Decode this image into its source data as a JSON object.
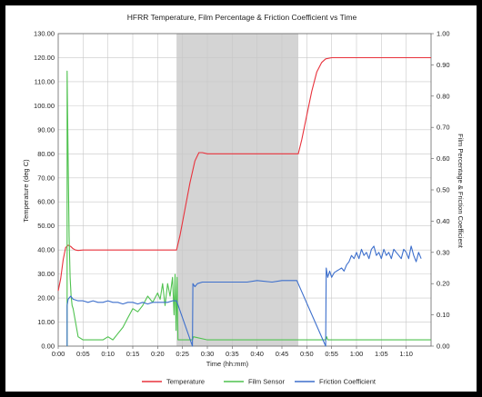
{
  "chart_data": {
    "type": "line",
    "title": "HFRR Temperature, Film Percentage & Friction Coefficient vs Time",
    "xlabel": "Time (hh:mm)",
    "ylabel_left": "Temperature (deg C)",
    "ylabel_right": "Film Percentage & Friction Coefficient",
    "x_ticks": [
      "0:00",
      "0:05",
      "0:10",
      "0:15",
      "0:20",
      "0:25",
      "0:30",
      "0:35",
      "0:40",
      "0:45",
      "0:50",
      "0:55",
      "1:00",
      "1:05",
      "1:10"
    ],
    "xlim": [
      0,
      75
    ],
    "ylim_left": [
      0,
      130
    ],
    "ylim_right": [
      0,
      1
    ],
    "y_ticks_left": [
      "0.00",
      "10.00",
      "20.00",
      "30.00",
      "40.00",
      "50.00",
      "60.00",
      "70.00",
      "80.00",
      "90.00",
      "100.00",
      "110.00",
      "120.00",
      "130.00"
    ],
    "y_ticks_right": [
      "0.00",
      "0.10",
      "0.20",
      "0.30",
      "0.40",
      "0.50",
      "0.60",
      "0.70",
      "0.80",
      "0.90",
      "1.00"
    ],
    "shaded_region": {
      "x_start": 23.8,
      "x_end": 48.3,
      "color": "#d4d4d4"
    },
    "grid": true,
    "legend_position": "bottom",
    "series": [
      {
        "name": "Temperature",
        "axis": "left",
        "color": "#e8323c",
        "x": [
          0,
          0.5,
          1,
          1.5,
          2,
          2.5,
          3,
          3.5,
          4,
          5,
          10,
          15,
          20,
          23.8,
          24.5,
          25.5,
          26.5,
          27.5,
          28.3,
          29,
          30,
          35,
          40,
          45,
          48.3,
          49,
          50,
          51,
          52,
          53,
          53.8,
          55,
          60,
          65,
          70,
          75
        ],
        "y": [
          23,
          28,
          36,
          41,
          42,
          41.5,
          40.5,
          40,
          39.8,
          40,
          40,
          40,
          40,
          40,
          46,
          57,
          68,
          77,
          80.5,
          80.5,
          80,
          80,
          80,
          80,
          80,
          86,
          96,
          106,
          114,
          118,
          119.5,
          120,
          120,
          120,
          120,
          120
        ]
      },
      {
        "name": "Film Sensor",
        "axis": "right",
        "color": "#4fc24f",
        "x": [
          1.8,
          1.8,
          2,
          2.2,
          2.4,
          2.6,
          2.8,
          3,
          4,
          5,
          7,
          9,
          10,
          11,
          12,
          13,
          14,
          15,
          16,
          17,
          18,
          19,
          20,
          20.5,
          21,
          21.5,
          22,
          22.5,
          23,
          23.3,
          23.5,
          23.7,
          23.9,
          24.1,
          27,
          27.2,
          30,
          35,
          40,
          45,
          48,
          53.8,
          54,
          54.2,
          60,
          65,
          70,
          75
        ],
        "y": [
          0,
          0.88,
          0.6,
          0.35,
          0.22,
          0.16,
          0.13,
          0.12,
          0.03,
          0.02,
          0.02,
          0.02,
          0.03,
          0.02,
          0.04,
          0.06,
          0.09,
          0.12,
          0.11,
          0.13,
          0.16,
          0.14,
          0.17,
          0.15,
          0.2,
          0.13,
          0.2,
          0.16,
          0.22,
          0.1,
          0.23,
          0.05,
          0.22,
          0.02,
          0.02,
          0.03,
          0.02,
          0.02,
          0.02,
          0.02,
          0.02,
          0.02,
          0.03,
          0.02,
          0.02,
          0.02,
          0.02,
          0.02
        ]
      },
      {
        "name": "Friction Coefficient",
        "axis": "right",
        "color": "#3d6fcc",
        "x": [
          1.8,
          1.8,
          2,
          2.5,
          3,
          4,
          5,
          6,
          7,
          8,
          9,
          10,
          11,
          12,
          13,
          14,
          15,
          16,
          17,
          18,
          19,
          20,
          21,
          22,
          23,
          23.8,
          27,
          27.1,
          27.5,
          28,
          29,
          30,
          32,
          35,
          38,
          40,
          43,
          45,
          48,
          53.8,
          53.9,
          54.2,
          54.6,
          55,
          55.5,
          56,
          56.5,
          57,
          57.5,
          58,
          58.5,
          59,
          59.5,
          60,
          60.5,
          61,
          61.5,
          62,
          62.5,
          63,
          63.5,
          64,
          64.5,
          65,
          65.5,
          66,
          66.5,
          67,
          67.5,
          68,
          68.5,
          69,
          69.5,
          70,
          70.5,
          71,
          71.5,
          72,
          72.5,
          73
        ],
        "y": [
          0,
          0.13,
          0.15,
          0.16,
          0.15,
          0.145,
          0.145,
          0.14,
          0.145,
          0.14,
          0.14,
          0.145,
          0.14,
          0.14,
          0.135,
          0.14,
          0.14,
          0.135,
          0.14,
          0.135,
          0.14,
          0.14,
          0.14,
          0.14,
          0.145,
          0.145,
          0,
          0.2,
          0.19,
          0.2,
          0.205,
          0.205,
          0.205,
          0.205,
          0.205,
          0.21,
          0.205,
          0.21,
          0.21,
          0,
          0.25,
          0.22,
          0.24,
          0.22,
          0.235,
          0.24,
          0.245,
          0.25,
          0.24,
          0.26,
          0.27,
          0.29,
          0.28,
          0.3,
          0.28,
          0.31,
          0.29,
          0.3,
          0.28,
          0.31,
          0.32,
          0.29,
          0.3,
          0.28,
          0.31,
          0.29,
          0.3,
          0.28,
          0.31,
          0.3,
          0.29,
          0.28,
          0.31,
          0.3,
          0.28,
          0.32,
          0.29,
          0.27,
          0.3,
          0.28
        ]
      }
    ]
  }
}
